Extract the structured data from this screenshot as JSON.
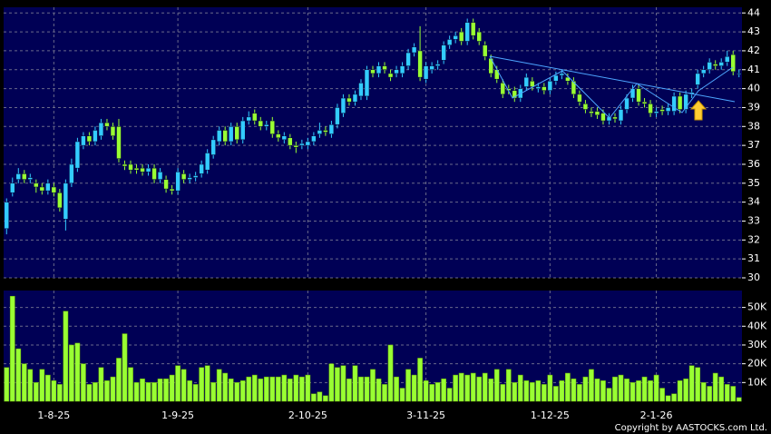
{
  "chart_data": [
    {
      "type": "candlestick",
      "up_color": "#33ccff",
      "down_color": "#99ff33",
      "ylim": [
        30,
        44.3
      ],
      "yticks": [
        30,
        31,
        32,
        33,
        34,
        35,
        36,
        37,
        38,
        39,
        40,
        41,
        42,
        43,
        44
      ],
      "grid": true,
      "open": [
        32.6,
        34.5,
        35.2,
        35.5,
        35.2,
        35.0,
        34.8,
        34.6,
        34.8,
        34.5,
        33.1,
        35.0,
        35.8,
        37.0,
        37.5,
        37.2,
        37.5,
        38.2,
        38.0,
        38.0,
        36.0,
        36.0,
        35.8,
        35.8,
        35.6,
        35.8,
        35.2,
        35.2,
        34.7,
        34.6,
        35.5,
        35.2,
        35.3,
        35.5,
        35.7,
        36.5,
        37.2,
        37.8,
        37.2,
        38.0,
        37.3,
        38.3,
        38.7,
        38.3,
        38.0,
        38.3,
        37.6,
        37.3,
        37.4,
        37.0,
        37.0,
        37.0,
        37.2,
        37.6,
        37.8,
        37.6,
        38.1,
        38.7,
        39.5,
        39.3,
        39.6,
        39.6,
        41.0,
        40.8,
        41.2,
        40.8,
        40.8,
        40.8,
        41.2,
        41.9,
        42.0,
        40.5,
        41.0,
        41.2,
        41.5,
        42.3,
        42.6,
        43.0,
        42.5,
        43.5,
        43.0,
        42.3,
        41.6,
        41.0,
        40.3,
        40.0,
        39.9,
        39.5,
        40.1,
        40.4,
        40.0,
        40.1,
        39.9,
        40.4,
        40.7,
        40.6,
        40.4,
        39.7,
        39.2,
        38.8,
        38.8,
        38.7,
        38.3,
        38.5,
        38.3,
        38.9,
        39.5,
        40.0,
        39.3,
        39.2,
        38.7,
        38.9,
        38.8,
        38.8,
        39.6,
        38.9,
        39.7,
        40.2,
        40.8,
        41.0,
        41.3,
        41.2,
        41.4,
        41.8,
        40.8
      ],
      "high": [
        34.2,
        35.3,
        35.8,
        35.7,
        35.5,
        35.2,
        35.0,
        35.2,
        35.0,
        34.7,
        35.2,
        36.3,
        37.4,
        37.7,
        37.7,
        38.0,
        38.4,
        38.4,
        38.2,
        38.4,
        36.2,
        36.2,
        36.0,
        36.0,
        36.0,
        36.0,
        35.8,
        35.4,
        34.9,
        35.8,
        35.7,
        35.5,
        35.6,
        36.2,
        36.8,
        37.5,
        38.0,
        38.0,
        38.2,
        38.2,
        38.5,
        38.8,
        38.9,
        38.5,
        38.3,
        38.5,
        37.8,
        37.7,
        37.6,
        37.2,
        37.3,
        37.4,
        37.7,
        38.2,
        38.0,
        38.3,
        39.2,
        39.7,
        39.7,
        39.9,
        40.5,
        41.2,
        41.2,
        41.4,
        41.4,
        41.0,
        41.2,
        41.4,
        42.1,
        42.4,
        43.3,
        41.4,
        41.4,
        41.5,
        42.5,
        42.8,
        43.0,
        43.2,
        43.7,
        43.7,
        43.2,
        42.5,
        41.8,
        41.2,
        40.5,
        40.2,
        40.1,
        40.2,
        40.8,
        40.6,
        40.3,
        40.3,
        40.6,
        40.9,
        41.0,
        40.8,
        40.6,
        39.9,
        39.4,
        39.0,
        39.0,
        38.9,
        38.7,
        38.7,
        39.1,
        39.7,
        40.2,
        40.2,
        39.5,
        39.4,
        39.0,
        39.1,
        39.2,
        39.8,
        39.8,
        39.9,
        40.0,
        41.0,
        41.2,
        41.6,
        41.5,
        41.6,
        42.0,
        42.0,
        41.0
      ],
      "low": [
        32.3,
        34.3,
        35.0,
        35.0,
        35.0,
        34.5,
        34.4,
        34.4,
        34.3,
        33.5,
        32.5,
        34.8,
        35.6,
        36.8,
        37.0,
        37.0,
        37.3,
        37.8,
        37.3,
        36.1,
        35.7,
        35.5,
        35.5,
        35.4,
        35.4,
        35.0,
        35.0,
        34.5,
        34.4,
        34.4,
        35.0,
        35.0,
        35.1,
        35.3,
        35.5,
        36.3,
        37.0,
        37.0,
        37.0,
        37.1,
        37.1,
        38.1,
        38.1,
        37.8,
        37.8,
        37.4,
        37.2,
        37.1,
        36.8,
        36.6,
        36.8,
        36.8,
        37.0,
        37.4,
        37.5,
        37.4,
        37.9,
        38.5,
        39.1,
        39.1,
        39.4,
        39.4,
        40.6,
        40.6,
        40.8,
        40.4,
        40.6,
        40.6,
        41.0,
        41.7,
        40.4,
        40.3,
        40.8,
        41.0,
        41.3,
        42.1,
        42.4,
        42.3,
        42.3,
        42.6,
        42.3,
        41.5,
        40.6,
        40.3,
        39.5,
        39.7,
        39.3,
        39.3,
        39.9,
        39.9,
        39.8,
        39.7,
        39.7,
        40.2,
        40.5,
        40.2,
        39.5,
        39.1,
        38.7,
        38.5,
        38.4,
        38.1,
        38.1,
        38.2,
        38.1,
        38.7,
        39.3,
        39.1,
        39.0,
        38.5,
        38.5,
        38.6,
        38.6,
        38.6,
        38.7,
        38.7,
        39.5,
        40.0,
        40.6,
        40.8,
        41.0,
        41.0,
        41.2,
        40.7,
        40.6
      ],
      "close": [
        34.0,
        35.0,
        35.5,
        35.2,
        35.3,
        34.8,
        34.6,
        35.0,
        34.5,
        33.7,
        35.0,
        36.0,
        37.2,
        37.5,
        37.2,
        37.8,
        38.2,
        38.0,
        37.5,
        36.3,
        35.9,
        35.7,
        35.7,
        35.6,
        35.8,
        35.2,
        35.6,
        34.7,
        34.6,
        35.6,
        35.2,
        35.3,
        35.4,
        36.0,
        36.6,
        37.3,
        37.8,
        37.2,
        38.0,
        37.3,
        38.3,
        38.5,
        38.3,
        38.0,
        38.1,
        37.6,
        37.4,
        37.5,
        37.0,
        36.9,
        37.1,
        37.2,
        37.5,
        37.8,
        37.7,
        38.1,
        39.0,
        39.5,
        39.3,
        39.7,
        40.3,
        41.0,
        40.8,
        41.2,
        41.0,
        40.6,
        41.0,
        41.2,
        41.9,
        42.2,
        40.6,
        41.2,
        41.2,
        41.3,
        42.3,
        42.6,
        42.8,
        42.5,
        43.5,
        42.8,
        42.5,
        41.7,
        40.8,
        40.5,
        39.7,
        39.9,
        39.5,
        40.0,
        40.6,
        40.1,
        40.1,
        39.9,
        40.4,
        40.7,
        40.8,
        40.4,
        39.7,
        39.3,
        38.9,
        38.7,
        38.6,
        38.3,
        38.5,
        38.4,
        38.9,
        39.5,
        40.0,
        39.3,
        39.2,
        38.7,
        38.8,
        38.8,
        39.0,
        39.6,
        38.9,
        39.7,
        39.8,
        40.8,
        41.0,
        41.4,
        41.2,
        41.4,
        41.7,
        40.9,
        40.8
      ]
    },
    {
      "type": "bar",
      "color": "#99ff33",
      "ylim": [
        0,
        59000
      ],
      "grid": true,
      "yticks": [
        {
          "value": 10000,
          "label": "10K"
        },
        {
          "value": 20000,
          "label": "20K"
        },
        {
          "value": 30000,
          "label": "30K"
        },
        {
          "value": 40000,
          "label": "40K"
        },
        {
          "value": 50000,
          "label": "50K"
        }
      ],
      "categories": [
        null,
        null,
        null,
        null,
        null,
        null,
        null,
        null,
        "1-8-25",
        null,
        null,
        null,
        null,
        null,
        null,
        null,
        null,
        null,
        null,
        null,
        null,
        null,
        null,
        null,
        null,
        null,
        null,
        null,
        null,
        "1-9-25",
        null,
        null,
        null,
        null,
        null,
        null,
        null,
        null,
        null,
        null,
        null,
        null,
        null,
        null,
        null,
        null,
        null,
        null,
        null,
        null,
        null,
        "2-10-25",
        null,
        null,
        null,
        null,
        null,
        null,
        null,
        null,
        null,
        null,
        null,
        null,
        null,
        null,
        null,
        null,
        null,
        null,
        null,
        "3-11-25",
        null,
        null,
        null,
        null,
        null,
        null,
        null,
        null,
        null,
        null,
        null,
        null,
        null,
        null,
        null,
        null,
        null,
        null,
        null,
        null,
        "1-12-25",
        null,
        null,
        null,
        null,
        null,
        null,
        null,
        null,
        null,
        null,
        null,
        null,
        null,
        null,
        null,
        null,
        null,
        "2-1-26",
        null,
        null,
        null,
        null,
        null,
        null,
        null,
        null,
        null,
        null,
        null,
        null,
        null,
        null
      ],
      "values": [
        18000,
        56000,
        28000,
        20000,
        17000,
        10000,
        17000,
        14000,
        11000,
        9000,
        48000,
        30000,
        31000,
        20000,
        9000,
        10000,
        18000,
        11000,
        13000,
        23000,
        36000,
        18000,
        10000,
        12000,
        10000,
        10000,
        12000,
        12000,
        14000,
        19000,
        17000,
        11000,
        9000,
        18000,
        19000,
        10000,
        17000,
        15000,
        12000,
        10000,
        11000,
        13000,
        14000,
        12000,
        13000,
        13000,
        13000,
        14000,
        12000,
        14000,
        13000,
        14000,
        4000,
        5000,
        3000,
        20000,
        18000,
        19000,
        12000,
        19000,
        13000,
        13000,
        17000,
        12000,
        9000,
        30000,
        13000,
        7000,
        17000,
        14000,
        23000,
        11000,
        9000,
        10000,
        12000,
        7000,
        14000,
        15000,
        14000,
        15000,
        13000,
        15000,
        12000,
        17000,
        9000,
        17000,
        10000,
        14000,
        11000,
        10000,
        11000,
        9000,
        14000,
        8000,
        11000,
        15000,
        12000,
        9000,
        13000,
        17000,
        12000,
        11000,
        7000,
        13000,
        14000,
        12000,
        10000,
        11000,
        13000,
        11000,
        14000,
        7000,
        3000,
        4000,
        11000,
        12000,
        19000,
        18000,
        10000,
        8000,
        15000,
        13000,
        9000,
        8000,
        2000
      ]
    }
  ],
  "copyright": "Copyright by AASTOCKS.com Ltd."
}
